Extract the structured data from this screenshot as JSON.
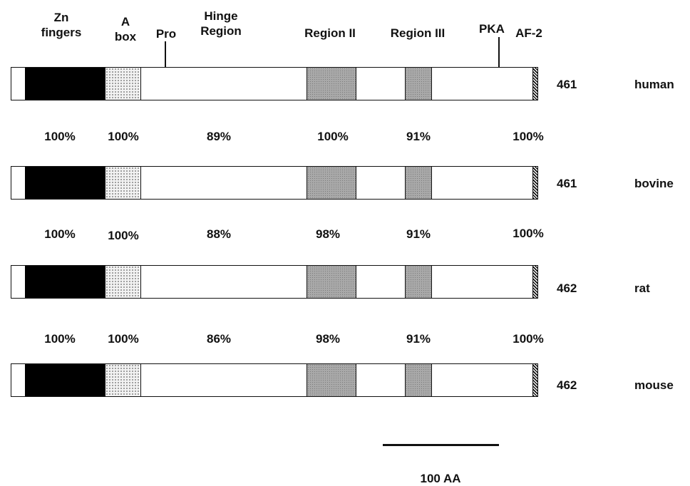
{
  "header_labels": {
    "zn_fingers": [
      "Zn",
      "fingers"
    ],
    "a_box": [
      "A",
      "box"
    ],
    "pro": "Pro",
    "hinge_region": [
      "Hinge",
      "Region"
    ],
    "region_ii": "Region II",
    "region_iii": "Region III",
    "pka": "PKA",
    "af2": "AF-2"
  },
  "proteins": [
    {
      "species": "human",
      "length": "461"
    },
    {
      "species": "bovine",
      "length": "461"
    },
    {
      "species": "rat",
      "length": "462"
    },
    {
      "species": "mouse",
      "length": "462"
    }
  ],
  "identity_rows": [
    [
      "100%",
      "100%",
      "89%",
      "100%",
      "91%",
      "100%"
    ],
    [
      "100%",
      "100%",
      "88%",
      "98%",
      "91%",
      "100%"
    ],
    [
      "100%",
      "100%",
      "86%",
      "98%",
      "91%",
      "100%"
    ]
  ],
  "scale_bar": {
    "label": "100 AA"
  },
  "colors": {
    "zn_fingers": "#000000",
    "region_grey": "#a9a9a9",
    "outline": "#111111",
    "background": "#ffffff"
  }
}
